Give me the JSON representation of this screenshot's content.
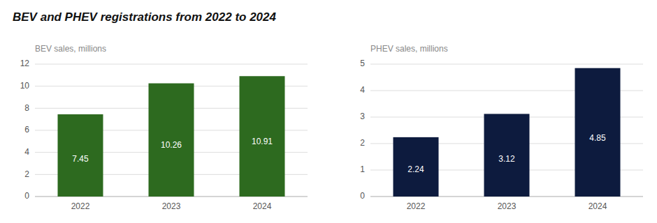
{
  "chart_data": [
    {
      "type": "bar",
      "title": "BEV and PHEV registrations from 2022 to 2024",
      "ylabel": "BEV sales, millions",
      "categories": [
        "2022",
        "2023",
        "2024"
      ],
      "values": [
        7.45,
        10.26,
        10.91
      ],
      "color": "#2d6a1f",
      "ylim": [
        0,
        12
      ],
      "yticks": [
        0,
        2,
        4,
        6,
        8,
        10,
        12
      ],
      "grid": true,
      "data_labels": true
    },
    {
      "type": "bar",
      "ylabel": "PHEV sales, millions",
      "categories": [
        "2022",
        "2023",
        "2024"
      ],
      "values": [
        2.24,
        3.12,
        4.85
      ],
      "color": "#0d1b3e",
      "ylim": [
        0,
        5
      ],
      "yticks": [
        0,
        1,
        2,
        3,
        4,
        5
      ],
      "grid": true,
      "data_labels": true
    }
  ]
}
